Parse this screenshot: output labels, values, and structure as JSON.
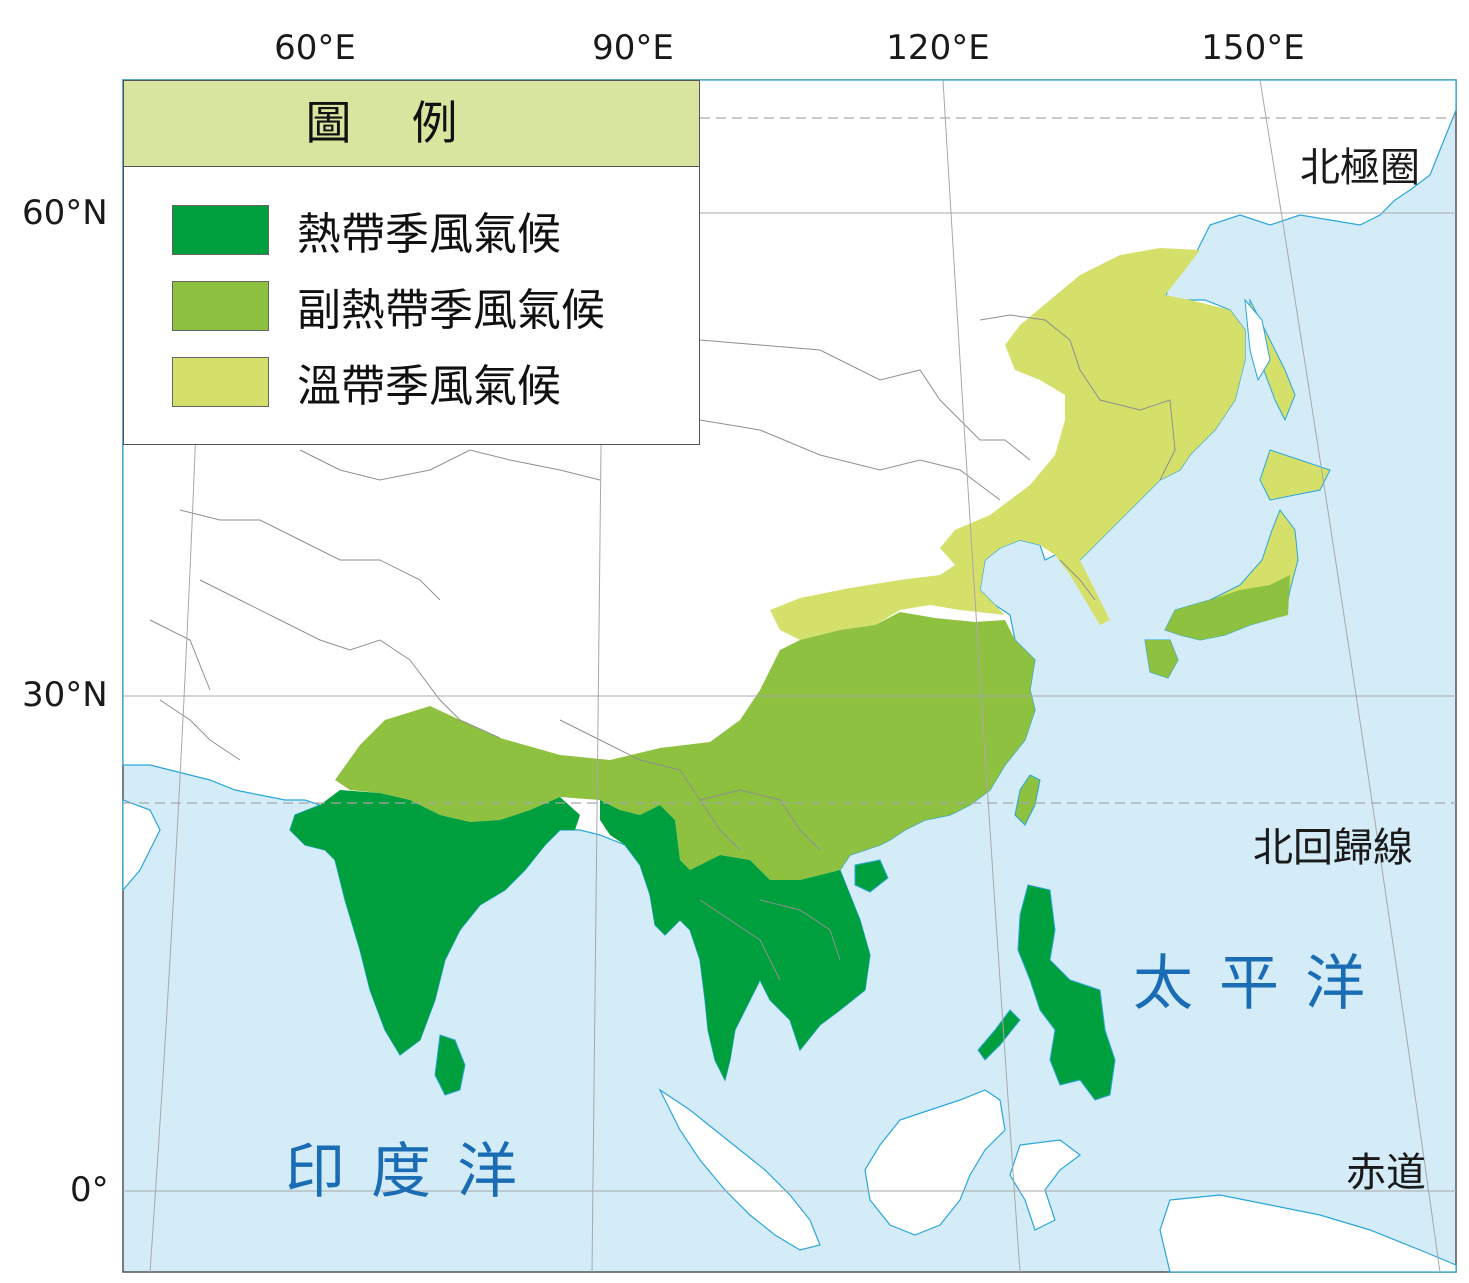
{
  "axes": {
    "lon_ticks": [
      "60°E",
      "90°E",
      "120°E",
      "150°E"
    ],
    "lat_ticks": [
      "60°N",
      "30°N",
      "0°"
    ]
  },
  "reference_lines": {
    "arctic_circle": "北極圈",
    "tropic_of_cancer": "北回歸線",
    "equator": "赤道"
  },
  "oceans": {
    "pacific": "太平洋",
    "indian": "印度洋"
  },
  "legend": {
    "title": "圖例",
    "items": [
      {
        "label": "熱帶季風氣候",
        "color": "#009f3d"
      },
      {
        "label": "副熱帶季風氣候",
        "color": "#8dc13f"
      },
      {
        "label": "溫帶季風氣候",
        "color": "#d5e06a"
      }
    ]
  },
  "colors": {
    "sea": "#d3ecf8",
    "land": "#ffffff",
    "coast": "#2ba6d9",
    "border": "#8f8f8f",
    "graticule": "#a8a8a8",
    "tropical": "#009f3d",
    "subtropical": "#8dc13f",
    "temperate": "#d5e06a"
  }
}
